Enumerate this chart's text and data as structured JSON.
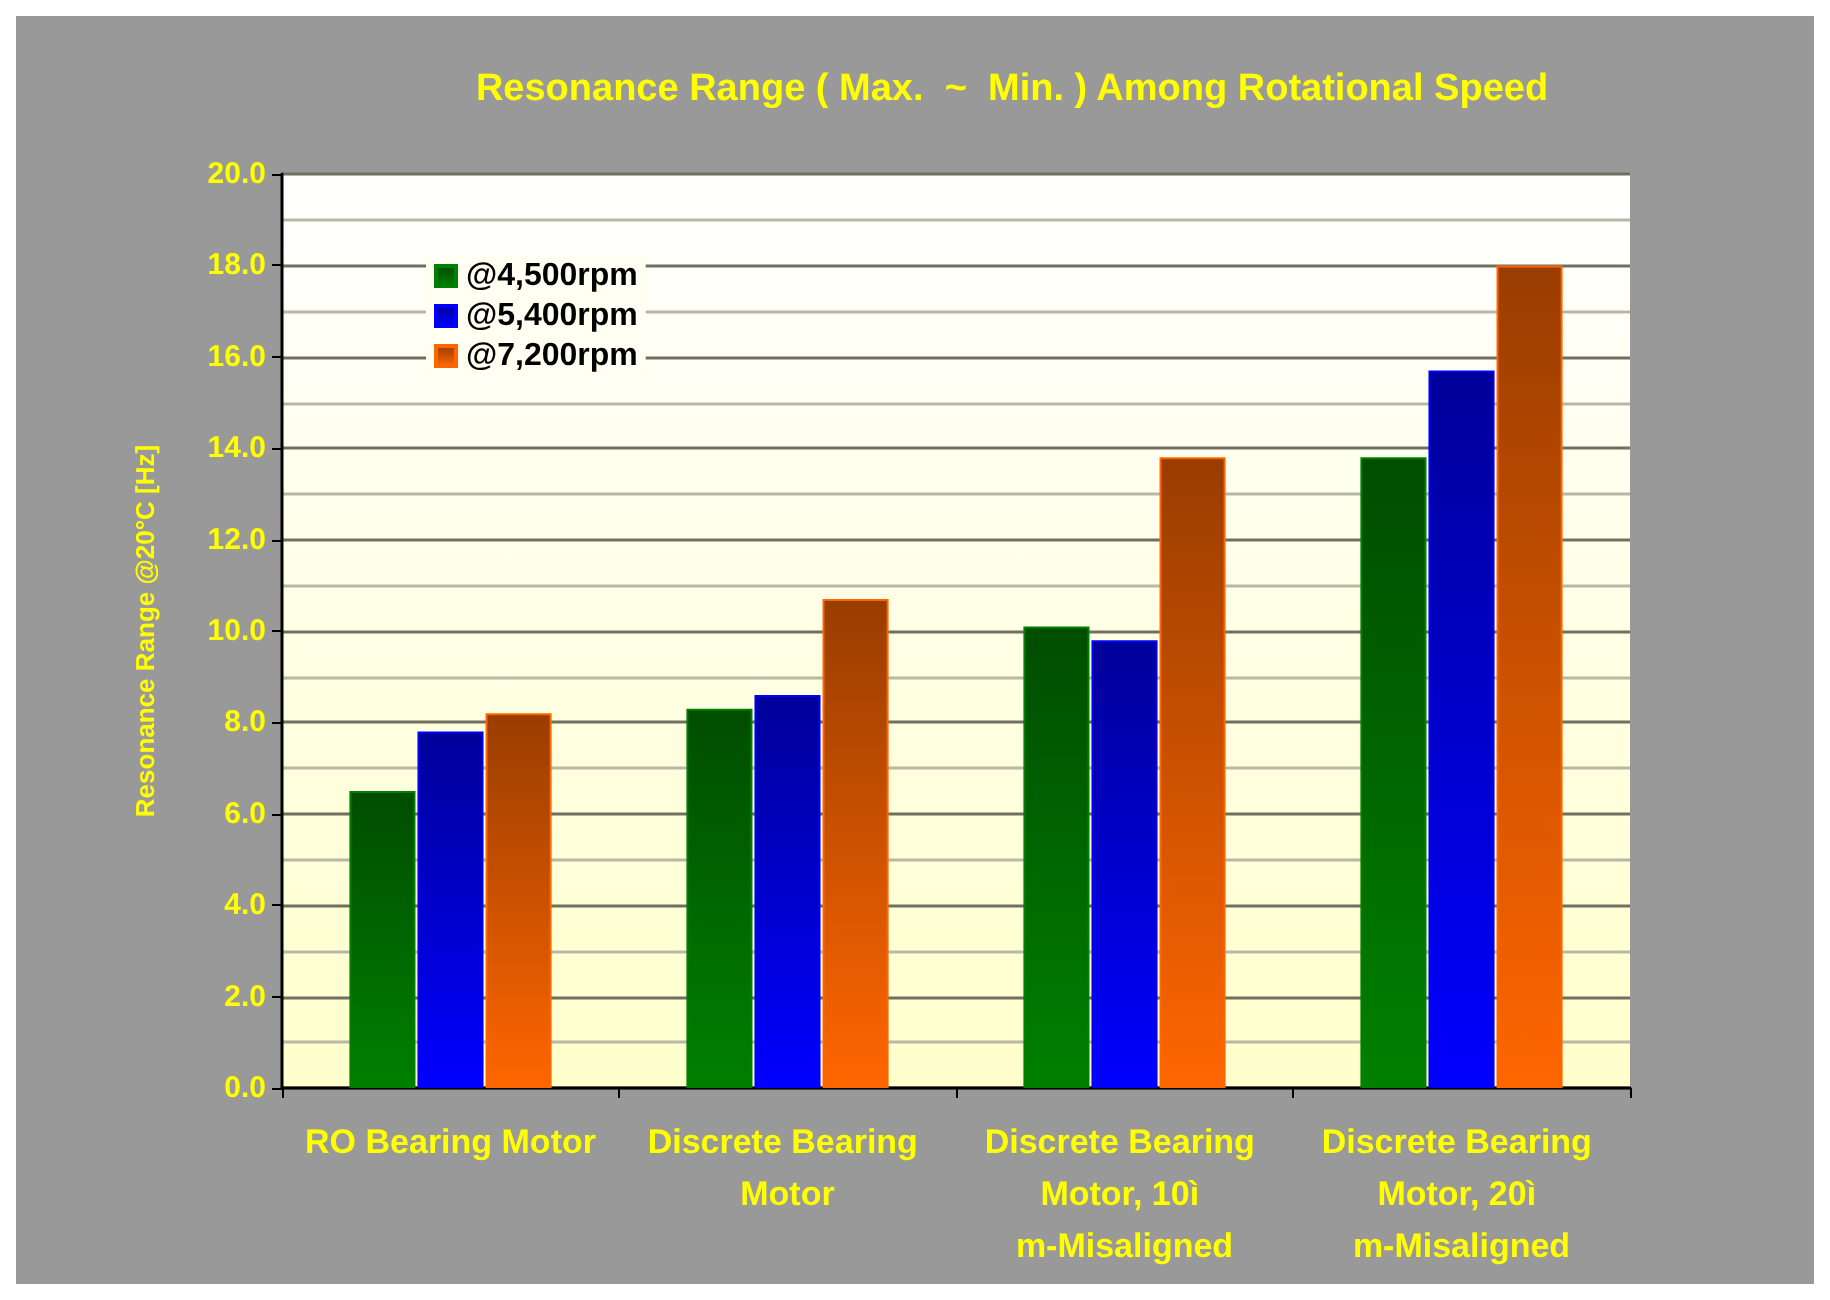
{
  "chart_data": {
    "type": "bar",
    "title": "Resonance Range ( Max.  ~  Min. ) Among Rotational Speed",
    "ylabel": "Resonance Range @20°C [Hz]",
    "categories": [
      "RO Bearing Motor",
      "Discrete Bearing Motor",
      "Discrete Bearing Motor, 10ì m-Misaligned",
      "Discrete Bearing Motor, 20ì m-Misaligned"
    ],
    "series": [
      {
        "name": "@4,500rpm",
        "color": "#008000",
        "values": [
          6.5,
          8.3,
          10.1,
          13.8
        ]
      },
      {
        "name": "@5,400rpm",
        "color": "#0000ff",
        "values": [
          7.8,
          8.6,
          9.8,
          15.7
        ]
      },
      {
        "name": "@7,200rpm",
        "color": "#ff6600",
        "values": [
          8.2,
          10.7,
          13.8,
          18.0
        ]
      }
    ],
    "ylim": [
      0,
      20
    ],
    "yticks": [
      {
        "value": 0,
        "label": "0.0"
      },
      {
        "value": 2,
        "label": "2.0"
      },
      {
        "value": 4,
        "label": "4.0"
      },
      {
        "value": 6,
        "label": "6.0"
      },
      {
        "value": 8,
        "label": "8.0"
      },
      {
        "value": 10,
        "label": "10.0"
      },
      {
        "value": 12,
        "label": "12.0"
      },
      {
        "value": 14,
        "label": "14.0"
      },
      {
        "value": 16,
        "label": "16.0"
      },
      {
        "value": 18,
        "label": "18.0"
      },
      {
        "value": 20,
        "label": "20.0"
      }
    ],
    "grid": "y",
    "legend": "top left"
  }
}
